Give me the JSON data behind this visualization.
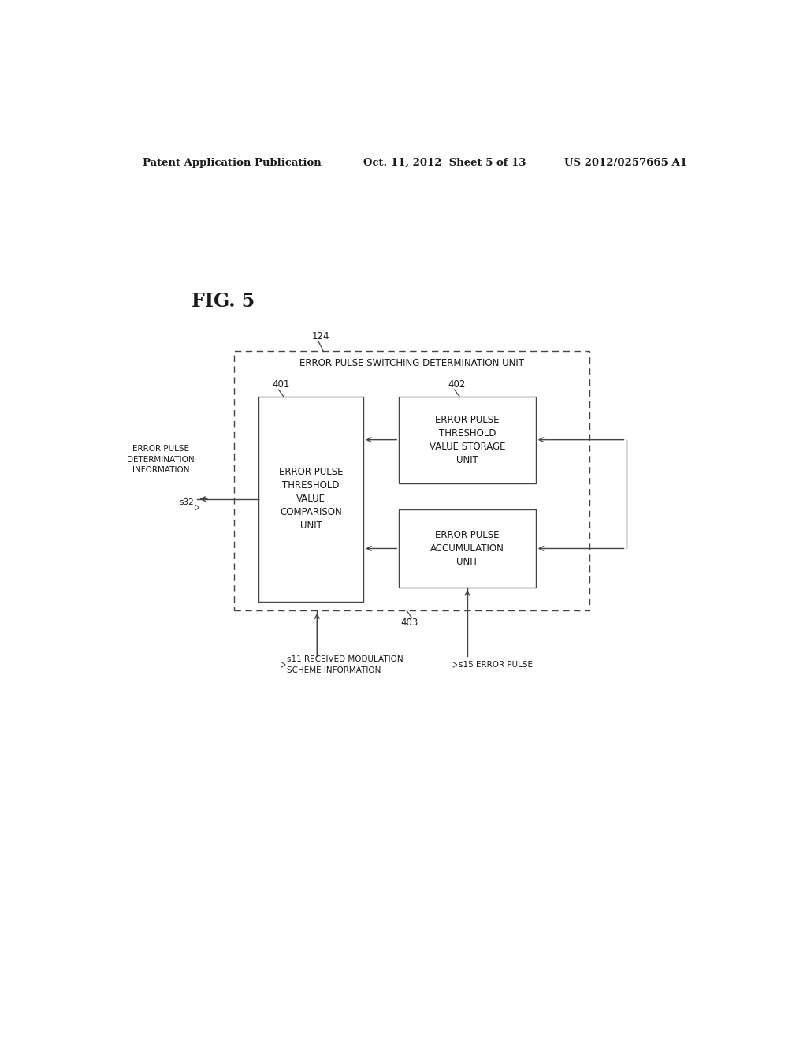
{
  "header_left": "Patent Application Publication",
  "header_mid": "Oct. 11, 2012  Sheet 5 of 13",
  "header_right": "US 2012/0257665 A1",
  "fig_label": "FIG. 5",
  "outer_box_label": "ERROR PULSE SWITCHING DETERMINATION UNIT",
  "ref_124": "124",
  "box401_label": "ERROR PULSE\nTHRESHOLD\nVALUE\nCOMPARISON\nUNIT",
  "box401_ref": "401",
  "box402_label": "ERROR PULSE\nTHRESHOLD\nVALUE STORAGE\nUNIT",
  "box402_ref": "402",
  "box403_label": "ERROR PULSE\nACCUMULATION\nUNIT",
  "box403_ref": "403",
  "left_input_label": "ERROR PULSE\nDETERMINATION\nINFORMATION",
  "left_input_ref": "s32",
  "bottom_left_label": "s11 RECEIVED MODULATION\nSCHEME INFORMATION",
  "bottom_right_label": "s15 ERROR PULSE",
  "bg_color": "#ffffff",
  "line_color": "#444444",
  "text_color": "#1a1a1a"
}
